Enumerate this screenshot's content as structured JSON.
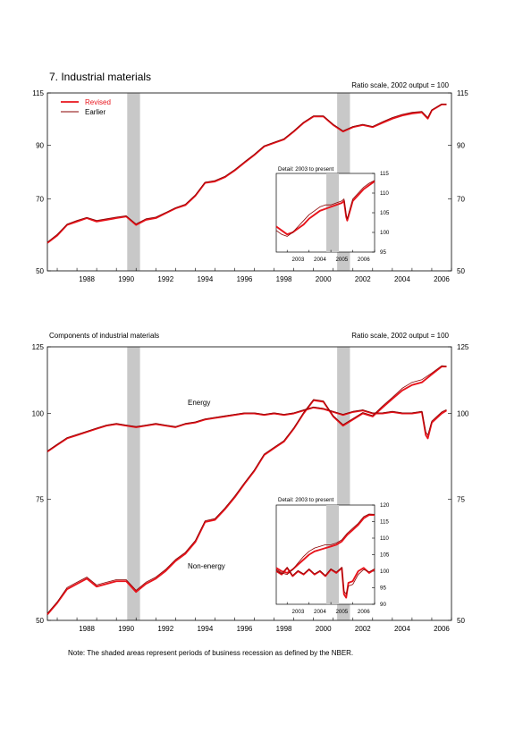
{
  "page_title": "7. Industrial materials",
  "note": "Note: The shaded areas represent periods of business recession as defined by the NBER.",
  "colors": {
    "revised": "#e8141c",
    "earlier": "#8a0000",
    "recession": "#c8c8c8",
    "axis": "#000000"
  },
  "chart_data": [
    {
      "id": "industrial-materials",
      "type": "line",
      "title": "",
      "scale_note": "Ratio scale, 2002 output = 100",
      "x_range": [
        1986.5,
        2007.0
      ],
      "x_ticks": [
        "1988",
        "1990",
        "1992",
        "1994",
        "1996",
        "1998",
        "2000",
        "2002",
        "2004",
        "2006"
      ],
      "y_scale": "log",
      "y_range": [
        50,
        115
      ],
      "y_ticks": [
        "50",
        "70",
        "90",
        "115"
      ],
      "legend": {
        "placement": "top-left",
        "entries": [
          "Revised",
          "Earlier"
        ]
      },
      "recessions": [
        [
          1990.55,
          1991.2
        ],
        [
          2001.2,
          2001.85
        ]
      ],
      "series": [
        {
          "name": "Revised",
          "x": [
            1986.5,
            1987,
            1987.5,
            1988,
            1988.5,
            1989,
            1989.5,
            1990,
            1990.5,
            1991,
            1991.5,
            1992,
            1992.5,
            1993,
            1993.5,
            1994,
            1994.5,
            1995,
            1995.5,
            1996,
            1996.5,
            1997,
            1997.5,
            1998,
            1998.5,
            1999,
            1999.5,
            2000,
            2000.5,
            2001,
            2001.5,
            2002,
            2002.5,
            2003,
            2003.5,
            2004,
            2004.5,
            2005,
            2005.5,
            2005.8,
            2006,
            2006.5,
            2006.75
          ],
          "y": [
            57,
            59,
            62,
            63,
            64,
            63,
            63.5,
            64,
            64.5,
            62,
            63.5,
            64,
            65.5,
            67,
            68,
            71,
            75.5,
            76,
            77.5,
            80,
            83,
            86,
            89.5,
            91,
            92.5,
            96,
            100,
            103,
            103,
            99,
            96,
            98,
            99,
            98,
            100,
            102,
            103.5,
            104.5,
            105,
            102,
            106,
            109,
            109
          ]
        },
        {
          "name": "Earlier",
          "x": [
            1986.5,
            1987,
            1987.5,
            1988,
            1988.5,
            1989,
            1989.5,
            1990,
            1990.5,
            1991,
            1991.5,
            1992,
            1992.5,
            1993,
            1993.5,
            1994,
            1994.5,
            1995,
            1995.5,
            1996,
            1996.5,
            1997,
            1997.5,
            1998,
            1998.5,
            1999,
            1999.5,
            2000,
            2000.5,
            2001,
            2001.5,
            2002,
            2002.5,
            2003,
            2003.5,
            2004,
            2004.5,
            2005,
            2005.5,
            2005.8,
            2006,
            2006.5,
            2006.75
          ],
          "y": [
            57.2,
            59.3,
            62.2,
            63.3,
            64.2,
            63.3,
            63.8,
            64.3,
            64.7,
            62.3,
            63.8,
            64.3,
            65.7,
            67.2,
            68.3,
            71.3,
            75.7,
            76.3,
            77.8,
            80.3,
            83.3,
            86.3,
            89.8,
            91.3,
            92.8,
            96.3,
            100.3,
            103.3,
            103.3,
            99.3,
            96.3,
            98.3,
            99.3,
            98.3,
            100.5,
            102.5,
            104,
            105,
            105.5,
            102.5,
            106.3,
            109.2,
            109.2
          ]
        }
      ]
    },
    {
      "id": "industrial-materials-detail",
      "type": "line",
      "title": "Detail: 2003 to present",
      "x_range": [
        2002.5,
        2007.0
      ],
      "x_ticks": [
        "2003",
        "2004",
        "2005",
        "2006"
      ],
      "y_range": [
        95,
        115
      ],
      "y_ticks": [
        "95",
        "100",
        "105",
        "110",
        "115"
      ],
      "recessions": [],
      "series": [
        {
          "name": "Revised",
          "x": [
            2002.5,
            2002.75,
            2003,
            2003.25,
            2003.5,
            2003.75,
            2004,
            2004.25,
            2004.5,
            2004.75,
            2005,
            2005.25,
            2005.5,
            2005.6,
            2005.7,
            2005.75,
            2005.9,
            2006,
            2006.25,
            2006.5,
            2006.75,
            2007
          ],
          "y": [
            101.5,
            100.5,
            99.5,
            100,
            101,
            102,
            103.5,
            104.5,
            105.5,
            106,
            106.5,
            107,
            107.5,
            108,
            104,
            103,
            106,
            108,
            109.5,
            111,
            112,
            113
          ]
        },
        {
          "name": "Earlier",
          "x": [
            2002.5,
            2002.75,
            2003,
            2003.25,
            2003.5,
            2003.75,
            2004,
            2004.25,
            2004.5,
            2004.75,
            2005,
            2005.25,
            2005.5,
            2005.6,
            2005.7,
            2005.75,
            2005.9,
            2006,
            2006.25,
            2006.5,
            2006.75,
            2007
          ],
          "y": [
            100.5,
            99.5,
            99,
            100,
            101.5,
            103,
            104.5,
            105.5,
            106.5,
            107,
            107,
            107.5,
            108,
            108.5,
            104.5,
            103.5,
            106.5,
            108.5,
            110,
            111.5,
            112.5,
            113.2
          ]
        }
      ]
    },
    {
      "id": "components-of-industrial-materials",
      "type": "line",
      "title": "Components of industrial materials",
      "scale_note": "Ratio scale, 2002 output = 100",
      "x_range": [
        1986.5,
        2007.0
      ],
      "x_ticks": [
        "1988",
        "1990",
        "1992",
        "1994",
        "1996",
        "1998",
        "2000",
        "2002",
        "2004",
        "2006"
      ],
      "y_scale": "log",
      "y_range": [
        50,
        125
      ],
      "y_ticks": [
        "50",
        "75",
        "100",
        "125"
      ],
      "annotations": [
        "Energy",
        "Non-energy"
      ],
      "recessions": [
        [
          1990.55,
          1991.2
        ],
        [
          2001.2,
          2001.85
        ]
      ],
      "series": [
        {
          "name": "Revised",
          "group": "Energy",
          "x": [
            1986.5,
            1987,
            1987.5,
            1988,
            1988.5,
            1989,
            1989.5,
            1990,
            1990.5,
            1991,
            1991.5,
            1992,
            1992.5,
            1993,
            1993.5,
            1994,
            1994.5,
            1995,
            1995.5,
            1996,
            1996.5,
            1997,
            1997.5,
            1998,
            1998.5,
            1999,
            1999.5,
            2000,
            2000.5,
            2001,
            2001.5,
            2002,
            2002.5,
            2003,
            2003.5,
            2004,
            2004.5,
            2005,
            2005.5,
            2005.7,
            2005.8,
            2006,
            2006.5,
            2006.75
          ],
          "y": [
            88,
            90,
            92,
            93,
            94,
            95,
            96,
            96.5,
            96,
            95.5,
            96,
            96.5,
            96,
            95.5,
            96.5,
            97,
            98,
            98.5,
            99,
            99.5,
            100,
            100,
            99.5,
            100,
            99.5,
            100,
            101,
            102,
            101.5,
            100.5,
            99.5,
            100.5,
            101,
            100,
            100,
            100.5,
            100,
            100,
            100.5,
            93,
            92,
            97,
            100,
            101
          ]
        },
        {
          "name": "Earlier",
          "group": "Energy",
          "x": [
            1986.5,
            1987,
            1987.5,
            1988,
            1988.5,
            1989,
            1989.5,
            1990,
            1990.5,
            1991,
            1991.5,
            1992,
            1992.5,
            1993,
            1993.5,
            1994,
            1994.5,
            1995,
            1995.5,
            1996,
            1996.5,
            1997,
            1997.5,
            1998,
            1998.5,
            1999,
            1999.5,
            2000,
            2000.5,
            2001,
            2001.5,
            2002,
            2002.5,
            2003,
            2003.5,
            2004,
            2004.5,
            2005,
            2005.5,
            2005.7,
            2005.8,
            2006,
            2006.5,
            2006.75
          ],
          "y": [
            88.2,
            90.2,
            92.2,
            93.2,
            94.2,
            95.2,
            96.2,
            96.7,
            96.2,
            95.7,
            96.2,
            96.7,
            96.2,
            95.7,
            96.7,
            97.2,
            98.2,
            98.7,
            99.2,
            99.7,
            100.2,
            100.2,
            99.7,
            100.2,
            99.7,
            100.2,
            101.2,
            102.2,
            101.7,
            100.7,
            99.7,
            100.7,
            101.2,
            100.2,
            100.2,
            100.7,
            100.2,
            100.2,
            100.7,
            94,
            93,
            97.5,
            100.5,
            101.3
          ]
        },
        {
          "name": "Revised",
          "group": "Non-energy",
          "x": [
            1986.5,
            1987,
            1987.5,
            1988,
            1988.5,
            1989,
            1989.5,
            1990,
            1990.5,
            1991,
            1991.5,
            1992,
            1992.5,
            1993,
            1993.5,
            1994,
            1994.5,
            1995,
            1995.5,
            1996,
            1996.5,
            1997,
            1997.5,
            1998,
            1998.5,
            1999,
            1999.5,
            2000,
            2000.5,
            2001,
            2001.5,
            2002,
            2002.5,
            2003,
            2003.5,
            2004,
            2004.5,
            2005,
            2005.5,
            2006,
            2006.5,
            2006.75
          ],
          "y": [
            51,
            53,
            55.5,
            56.5,
            57.5,
            56,
            56.5,
            57,
            57,
            55,
            56.5,
            57.5,
            59,
            61,
            62.5,
            65,
            69.5,
            70,
            72.5,
            75.5,
            79,
            82.5,
            87,
            89,
            91,
            95,
            100,
            104.5,
            104,
            99,
            96,
            98,
            100,
            99,
            102,
            105,
            108,
            110,
            111,
            114,
            117,
            117
          ]
        },
        {
          "name": "Earlier",
          "group": "Non-energy",
          "x": [
            1986.5,
            1987,
            1987.5,
            1988,
            1988.5,
            1989,
            1989.5,
            1990,
            1990.5,
            1991,
            1991.5,
            1992,
            1992.5,
            1993,
            1993.5,
            1994,
            1994.5,
            1995,
            1995.5,
            1996,
            1996.5,
            1997,
            1997.5,
            1998,
            1998.5,
            1999,
            1999.5,
            2000,
            2000.5,
            2001,
            2001.5,
            2002,
            2002.5,
            2003,
            2003.5,
            2004,
            2004.5,
            2005,
            2005.5,
            2006,
            2006.5,
            2006.75
          ],
          "y": [
            51.2,
            53.2,
            55.8,
            56.8,
            57.8,
            56.3,
            56.8,
            57.3,
            57.3,
            55.3,
            56.8,
            57.8,
            59.3,
            61.3,
            62.8,
            65.3,
            69.8,
            70.3,
            72.8,
            75.8,
            79.3,
            82.8,
            87.3,
            89.3,
            91.3,
            95.3,
            100.3,
            104.8,
            104.3,
            99.3,
            96.3,
            98.3,
            100.3,
            99.3,
            102.5,
            105.5,
            108.8,
            111,
            112,
            114.5,
            117.3,
            117.2
          ]
        }
      ]
    },
    {
      "id": "components-detail",
      "type": "line",
      "title": "Detail: 2003 to present",
      "x_range": [
        2002.5,
        2007.0
      ],
      "x_ticks": [
        "2003",
        "2004",
        "2005",
        "2006"
      ],
      "y_range": [
        90,
        120
      ],
      "y_ticks": [
        "90",
        "95",
        "100",
        "105",
        "110",
        "115",
        "120"
      ],
      "recessions": [],
      "series": [
        {
          "name": "Revised",
          "group": "Non-energy",
          "x": [
            2002.5,
            2002.75,
            2003,
            2003.25,
            2003.5,
            2003.75,
            2004,
            2004.25,
            2004.5,
            2004.75,
            2005,
            2005.25,
            2005.5,
            2005.75,
            2006,
            2006.25,
            2006.5,
            2006.75,
            2007
          ],
          "y": [
            101,
            100,
            99.5,
            100.5,
            102,
            103.5,
            105,
            106,
            106.5,
            107,
            107.5,
            108,
            109,
            111,
            112.5,
            114,
            116,
            117,
            117
          ]
        },
        {
          "name": "Earlier",
          "group": "Non-energy",
          "x": [
            2002.5,
            2002.75,
            2003,
            2003.25,
            2003.5,
            2003.75,
            2004,
            2004.25,
            2004.5,
            2004.75,
            2005,
            2005.25,
            2005.5,
            2005.75,
            2006,
            2006.25,
            2006.5,
            2006.75,
            2007
          ],
          "y": [
            100.5,
            99.5,
            99,
            100.5,
            102.5,
            104.5,
            106,
            107,
            107.5,
            108,
            108,
            108.5,
            109.5,
            111.5,
            113,
            114.5,
            116.5,
            117.3,
            117.2
          ]
        },
        {
          "name": "Revised",
          "group": "Energy",
          "x": [
            2002.5,
            2002.75,
            2003,
            2003.25,
            2003.5,
            2003.75,
            2004,
            2004.25,
            2004.5,
            2004.75,
            2005,
            2005.25,
            2005.5,
            2005.6,
            2005.7,
            2005.8,
            2006,
            2006.25,
            2006.5,
            2006.75,
            2007
          ],
          "y": [
            100,
            99,
            101,
            98.5,
            100,
            99,
            100.5,
            99,
            100,
            98.5,
            100.5,
            99.5,
            101,
            93,
            92,
            96.5,
            97,
            100,
            101,
            99.5,
            100.5
          ]
        },
        {
          "name": "Earlier",
          "group": "Energy",
          "x": [
            2002.5,
            2002.75,
            2003,
            2003.25,
            2003.5,
            2003.75,
            2004,
            2004.25,
            2004.5,
            2004.75,
            2005,
            2005.25,
            2005.5,
            2005.6,
            2005.7,
            2005.8,
            2006,
            2006.25,
            2006.5,
            2006.75,
            2007
          ],
          "y": [
            100.2,
            99.2,
            101.2,
            98.7,
            100.2,
            99.2,
            100.7,
            99.2,
            100.2,
            98.7,
            100.7,
            99.7,
            101.2,
            94,
            93,
            95.5,
            96,
            99,
            100.5,
            99.8,
            100.7
          ]
        }
      ]
    }
  ]
}
